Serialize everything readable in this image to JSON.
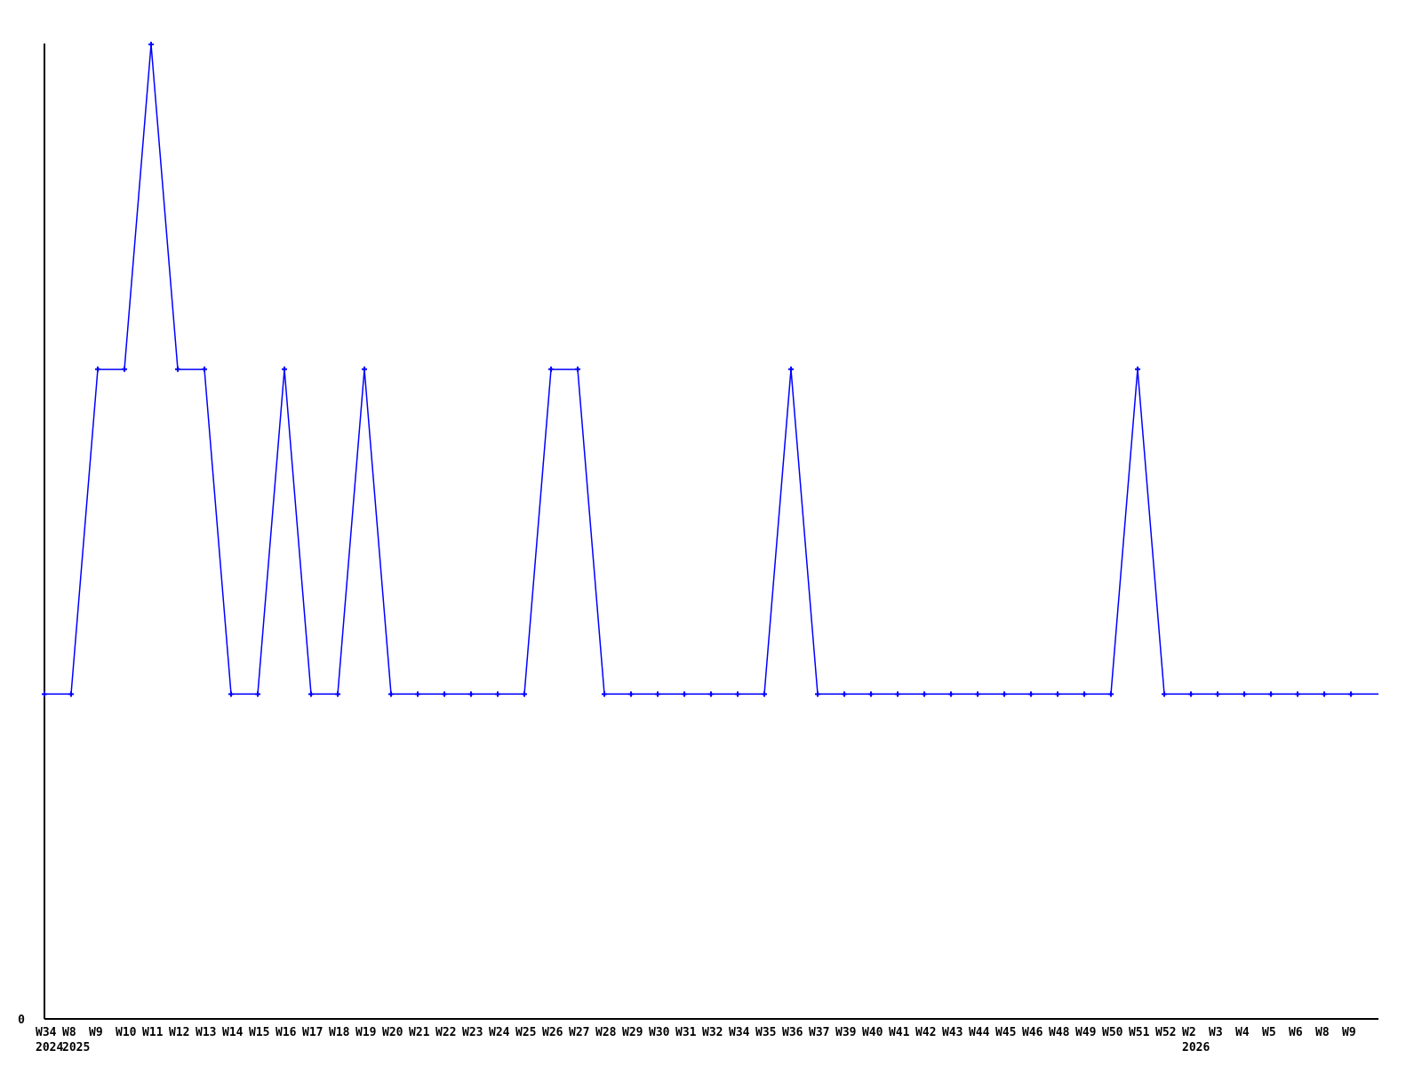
{
  "chart_data": {
    "type": "line",
    "title": "",
    "xlabel": "",
    "ylabel": "",
    "grid": false,
    "legend": "none",
    "ylim": [
      0,
      3
    ],
    "y_tick_labels": [
      "0"
    ],
    "categories": [
      "W34",
      "W8",
      "W9",
      "W10",
      "W11",
      "W12",
      "W13",
      "W14",
      "W15",
      "W16",
      "W17",
      "W18",
      "W19",
      "W20",
      "W21",
      "W22",
      "W23",
      "W24",
      "W25",
      "W26",
      "W27",
      "W28",
      "W29",
      "W30",
      "W31",
      "W32",
      "W34",
      "W35",
      "W36",
      "W37",
      "W39",
      "W40",
      "W41",
      "W42",
      "W43",
      "W44",
      "W45",
      "W46",
      "W48",
      "W49",
      "W50",
      "W51",
      "W52",
      "W2",
      "W3",
      "W4",
      "W5",
      "W6",
      "W8",
      "W9"
    ],
    "year_markers": [
      {
        "index": 0,
        "year": "2024"
      },
      {
        "index": 1,
        "year": "2025"
      },
      {
        "index": 43,
        "year": "2026"
      }
    ],
    "series": [
      {
        "name": "",
        "color": "#0000ff",
        "marker": "plus",
        "values": [
          1,
          1,
          2,
          2,
          3,
          2,
          2,
          1,
          1,
          2,
          1,
          1,
          2,
          1,
          1,
          1,
          1,
          1,
          1,
          2,
          2,
          1,
          1,
          1,
          1,
          1,
          1,
          1,
          2,
          1,
          1,
          1,
          1,
          1,
          1,
          1,
          1,
          1,
          1,
          1,
          1,
          2,
          1,
          1,
          1,
          1,
          1,
          1,
          1,
          1
        ]
      }
    ]
  },
  "colors": {
    "line": "#0000ff",
    "axis": "#000000",
    "text": "#000000",
    "background": "#ffffff"
  }
}
